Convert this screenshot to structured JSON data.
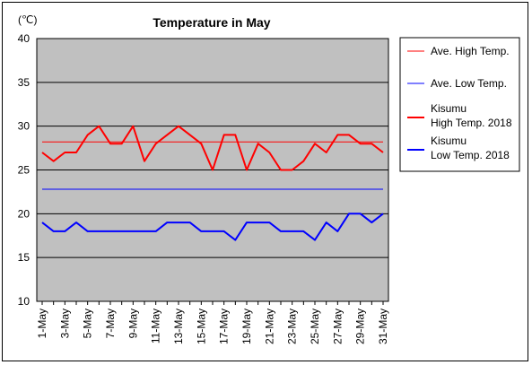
{
  "chart_data": {
    "type": "line",
    "title": "Temperature in May",
    "unit_label": "(℃)",
    "ylim": [
      10,
      40
    ],
    "yticks": [
      10,
      15,
      20,
      25,
      30,
      35,
      40
    ],
    "grid": true,
    "legend_position": "right",
    "categories": [
      "1-May",
      "2-May",
      "3-May",
      "4-May",
      "5-May",
      "6-May",
      "7-May",
      "8-May",
      "9-May",
      "10-May",
      "11-May",
      "12-May",
      "13-May",
      "14-May",
      "15-May",
      "16-May",
      "17-May",
      "18-May",
      "19-May",
      "20-May",
      "21-May",
      "22-May",
      "23-May",
      "24-May",
      "25-May",
      "26-May",
      "27-May",
      "28-May",
      "29-May",
      "30-May",
      "31-May"
    ],
    "tick_labels": [
      "1-May",
      "3-May",
      "5-May",
      "7-May",
      "9-May",
      "11-May",
      "13-May",
      "15-May",
      "17-May",
      "19-May",
      "21-May",
      "23-May",
      "25-May",
      "27-May",
      "29-May",
      "31-May"
    ],
    "series": [
      {
        "name": "Ave. High Temp.",
        "color": "#ff0000",
        "style": "thin",
        "values": [
          28.2,
          28.2,
          28.2,
          28.2,
          28.2,
          28.2,
          28.2,
          28.2,
          28.2,
          28.2,
          28.2,
          28.2,
          28.2,
          28.2,
          28.2,
          28.2,
          28.2,
          28.2,
          28.2,
          28.2,
          28.2,
          28.2,
          28.2,
          28.2,
          28.2,
          28.2,
          28.2,
          28.2,
          28.2,
          28.2,
          28.2
        ]
      },
      {
        "name": "Ave. Low Temp.",
        "color": "#0000ff",
        "style": "thin",
        "values": [
          22.8,
          22.8,
          22.8,
          22.8,
          22.8,
          22.8,
          22.8,
          22.8,
          22.8,
          22.8,
          22.8,
          22.8,
          22.8,
          22.8,
          22.8,
          22.8,
          22.8,
          22.8,
          22.8,
          22.8,
          22.8,
          22.8,
          22.8,
          22.8,
          22.8,
          22.8,
          22.8,
          22.8,
          22.8,
          22.8,
          22.8
        ]
      },
      {
        "name": "Kisumu High Temp. 2018",
        "name_lines": [
          "Kisumu",
          "High Temp. 2018"
        ],
        "color": "#ff0000",
        "style": "thick",
        "values": [
          27,
          26,
          27,
          27,
          29,
          30,
          28,
          28,
          30,
          26,
          28,
          29,
          30,
          29,
          28,
          25,
          29,
          29,
          25,
          28,
          27,
          25,
          25,
          26,
          28,
          27,
          29,
          29,
          28,
          28,
          27
        ]
      },
      {
        "name": "Kisumu Low Temp. 2018",
        "name_lines": [
          "Kisumu",
          "Low Temp. 2018"
        ],
        "color": "#0000ff",
        "style": "thick",
        "values": [
          19,
          18,
          18,
          19,
          18,
          18,
          18,
          18,
          18,
          18,
          18,
          19,
          19,
          19,
          18,
          18,
          18,
          17,
          19,
          19,
          19,
          18,
          18,
          18,
          17,
          19,
          18,
          20,
          20,
          19,
          20
        ]
      }
    ]
  }
}
